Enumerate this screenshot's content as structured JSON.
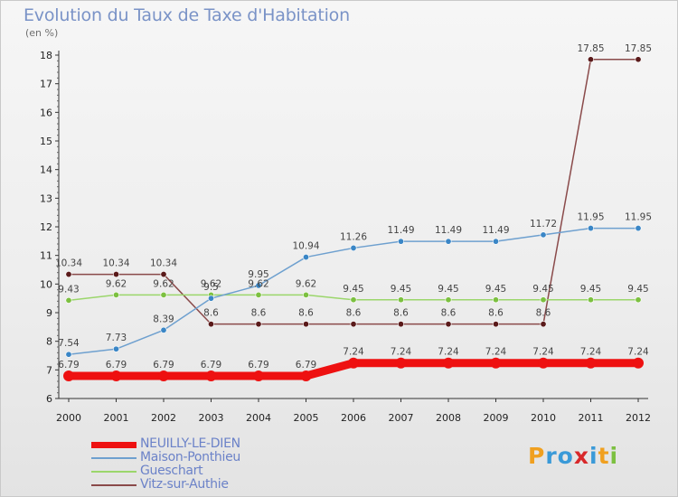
{
  "title": "Evolution du Taux de Taxe d'Habitation",
  "unit_label": "(en %)",
  "logo": {
    "text": "Proxiti",
    "letters": [
      {
        "ch": "P",
        "color": "#f0a020"
      },
      {
        "ch": "r",
        "color": "#3a9ad8"
      },
      {
        "ch": "o",
        "color": "#3a9ad8"
      },
      {
        "ch": "x",
        "color": "#d8282a"
      },
      {
        "ch": "i",
        "color": "#3a9ad8"
      },
      {
        "ch": "t",
        "color": "#f0a020"
      },
      {
        "ch": "i",
        "color": "#7cc040"
      }
    ]
  },
  "chart_data": {
    "type": "line",
    "title": "Evolution du Taux de Taxe d'Habitation",
    "ylabel": "(en %)",
    "xlabel": "",
    "ylim": [
      6,
      18
    ],
    "yticks": [
      6,
      7,
      8,
      9,
      10,
      11,
      12,
      13,
      14,
      15,
      16,
      17,
      18
    ],
    "grid": false,
    "legend_position": "bottom-left",
    "x": [
      "2000",
      "2001",
      "2002",
      "2003",
      "2004",
      "2005",
      "2006",
      "2007",
      "2008",
      "2009",
      "2010",
      "2011",
      "2012"
    ],
    "series": [
      {
        "name": "NEUILLY-LE-DIEN",
        "color": "#ee1111",
        "bold": true,
        "values": [
          6.79,
          6.79,
          6.79,
          6.79,
          6.79,
          6.79,
          7.24,
          7.24,
          7.24,
          7.24,
          7.24,
          7.24,
          7.24
        ]
      },
      {
        "name": "Maison-Ponthieu",
        "color": "#6ea0cf",
        "marker": "#3a86c6",
        "values": [
          7.54,
          7.73,
          8.39,
          9.5,
          9.95,
          10.94,
          11.26,
          11.49,
          11.49,
          11.49,
          11.72,
          11.95,
          11.95
        ]
      },
      {
        "name": "Gueschart",
        "color": "#9bd66b",
        "marker": "#7cc040",
        "values": [
          9.43,
          9.62,
          9.62,
          9.62,
          9.62,
          9.62,
          9.45,
          9.45,
          9.45,
          9.45,
          9.45,
          9.45,
          9.45
        ]
      },
      {
        "name": "Vitz-sur-Authie",
        "color": "#8a4a4a",
        "marker": "#5a1a1a",
        "values": [
          10.34,
          10.34,
          10.34,
          8.6,
          8.6,
          8.6,
          8.6,
          8.6,
          8.6,
          8.6,
          8.6,
          17.85,
          17.85
        ]
      }
    ]
  }
}
